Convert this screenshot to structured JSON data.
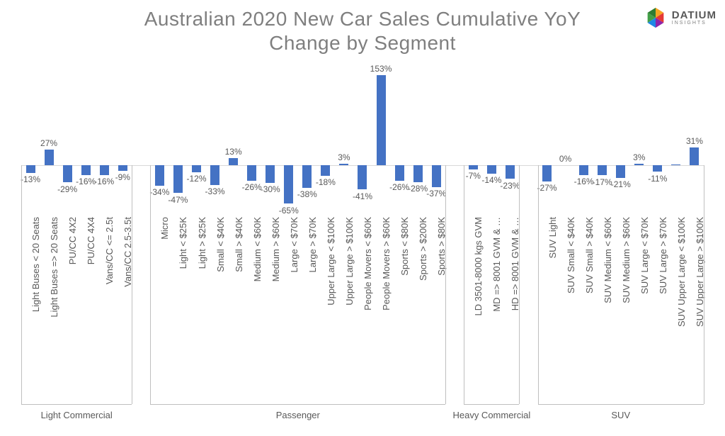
{
  "title_line1": "Australian 2020 New Car Sales Cumulative YoY",
  "title_line2": "Change by Segment",
  "logo": {
    "brand": "DATIUM",
    "sub": "INSIGHTS"
  },
  "chart": {
    "type": "bar",
    "title_fontsize": 28,
    "title_color": "#7f7f7f",
    "bar_color": "#4472c4",
    "label_color": "#595959",
    "axis_color": "#bfbfbf",
    "grid_color": "#d9d9d9",
    "background_color": "#ffffff",
    "label_fontsize": 12,
    "x_label_fontsize": 13,
    "group_label_fontsize": 13,
    "y_range": [
      -80,
      160
    ],
    "bar_width_ratio": 0.5,
    "groups": [
      {
        "name": "Light Commercial",
        "items": [
          {
            "label": "Light Buses < 20 Seats",
            "value": -13,
            "display": "-13%"
          },
          {
            "label": "Light Buses => 20 Seats",
            "value": 27,
            "display": "27%"
          },
          {
            "label": "PU/CC 4X2",
            "value": -29,
            "display": "-29%"
          },
          {
            "label": "PU/CC 4X4",
            "value": -16,
            "display": "-16%"
          },
          {
            "label": "Vans/CC <= 2.5t",
            "value": -16,
            "display": "-16%"
          },
          {
            "label": "Vans/CC 2.5-3.5t",
            "value": -9,
            "display": "-9%"
          }
        ]
      },
      {
        "name": "Passenger",
        "items": [
          {
            "label": "Micro",
            "value": -34,
            "display": "-34%"
          },
          {
            "label": "Light < $25K",
            "value": -47,
            "display": "-47%"
          },
          {
            "label": "Light > $25K",
            "value": -12,
            "display": "-12%"
          },
          {
            "label": "Small < $40K",
            "value": -33,
            "display": "-33%"
          },
          {
            "label": "Small > $40K",
            "value": 13,
            "display": "13%"
          },
          {
            "label": "Medium < $60K",
            "value": -26,
            "display": "-26%"
          },
          {
            "label": "Medium > $60K",
            "value": -30,
            "display": "-30%"
          },
          {
            "label": "Large < $70K",
            "value": -65,
            "display": "-65%"
          },
          {
            "label": "Large > $70K",
            "value": -38,
            "display": "-38%"
          },
          {
            "label": "Upper Large < $100K",
            "value": -18,
            "display": "-18%"
          },
          {
            "label": "Upper Large > $100K",
            "value": 3,
            "display": "3%"
          },
          {
            "label": "People Movers < $60K",
            "value": -41,
            "display": "-41%"
          },
          {
            "label": "People Movers > $60K",
            "value": 153,
            "display": "153%"
          },
          {
            "label": "Sports < $80K",
            "value": -26,
            "display": "-26%"
          },
          {
            "label": "Sports > $200K",
            "value": -28,
            "display": "-28%"
          },
          {
            "label": "Sports > $80K",
            "value": -37,
            "display": "-37%"
          }
        ]
      },
      {
        "name": "Heavy Commercial",
        "items": [
          {
            "label": "LD 3501-8000 kgs GVM",
            "value": -7,
            "display": "-7%"
          },
          {
            "label": "MD => 8001 GVM & …",
            "value": -14,
            "display": "-14%"
          },
          {
            "label": "HD => 8001 GVM & …",
            "value": -23,
            "display": "-23%"
          }
        ]
      },
      {
        "name": "SUV",
        "items": [
          {
            "label": "SUV Light",
            "value": -27,
            "display": "-27%"
          },
          {
            "label": "SUV Small < $40K",
            "value": 0,
            "display": "0%"
          },
          {
            "label": "SUV Small > $40K",
            "value": -16,
            "display": "-16%"
          },
          {
            "label": "SUV Medium < $60K",
            "value": -17,
            "display": "-17%"
          },
          {
            "label": "SUV Medium > $60K",
            "value": -21,
            "display": "-21%"
          },
          {
            "label": "SUV Large < $70K",
            "value": 3,
            "display": "3%"
          },
          {
            "label": "SUV Large > $70K",
            "value": -11,
            "display": "-11%"
          },
          {
            "label": "SUV Upper Large < $100K",
            "value": 2,
            "display": ""
          },
          {
            "label": "SUV Upper Large > $100K",
            "value": 31,
            "display": "31%"
          }
        ]
      }
    ]
  }
}
